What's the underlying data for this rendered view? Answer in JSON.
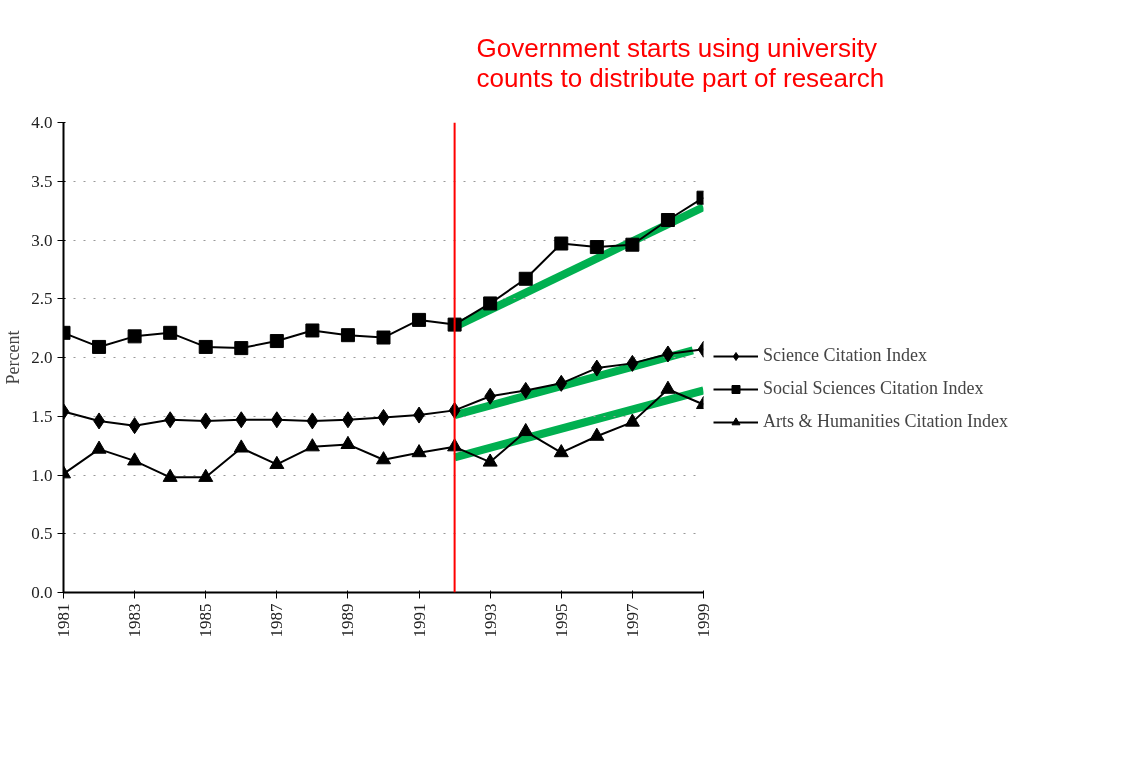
{
  "chart_data": {
    "type": "line",
    "ylabel": "Percent",
    "x": [
      1981,
      1982,
      1983,
      1984,
      1985,
      1986,
      1987,
      1988,
      1989,
      1990,
      1991,
      1992,
      1993,
      1994,
      1995,
      1996,
      1997,
      1998,
      1999
    ],
    "series": [
      {
        "name": "Science Citation Index",
        "color": "#000000",
        "marker": "diamond",
        "values": [
          1.54,
          1.46,
          1.42,
          1.47,
          1.46,
          1.47,
          1.47,
          1.46,
          1.47,
          1.49,
          1.51,
          1.55,
          1.67,
          1.72,
          1.78,
          1.91,
          1.95,
          2.03,
          2.07
        ]
      },
      {
        "name": "Social Sciences Citation Index",
        "color": "#000000",
        "marker": "square",
        "values": [
          2.21,
          2.09,
          2.18,
          2.21,
          2.09,
          2.08,
          2.14,
          2.23,
          2.19,
          2.17,
          2.32,
          2.28,
          2.46,
          2.67,
          2.97,
          2.94,
          2.96,
          3.17,
          3.36
        ]
      },
      {
        "name": "Arts & Humanities Citation Index",
        "color": "#000000",
        "marker": "triangle",
        "values": [
          1.01,
          1.22,
          1.12,
          0.98,
          0.98,
          1.23,
          1.09,
          1.24,
          1.26,
          1.13,
          1.19,
          1.24,
          1.11,
          1.37,
          1.19,
          1.33,
          1.45,
          1.73,
          1.6
        ]
      },
      {
        "type": "line",
        "color": "#00b050",
        "marker": "none",
        "x": [
          1992,
          1999
        ],
        "values": [
          2.26,
          3.28
        ]
      },
      {
        "type": "line",
        "color": "#00b050",
        "marker": "none",
        "x": [
          1992,
          1998.7
        ],
        "values": [
          1.51,
          2.06
        ]
      },
      {
        "type": "line",
        "color": "#00b050",
        "marker": "none",
        "x": [
          1992,
          1999
        ],
        "values": [
          1.15,
          1.72
        ]
      }
    ],
    "xlim": [
      1981,
      1999
    ],
    "xticks": [
      1981,
      1983,
      1985,
      1987,
      1989,
      1991,
      1993,
      1995,
      1997,
      1999
    ],
    "ylim": [
      0,
      4
    ],
    "yticks": [
      {
        "value": 0,
        "label": "0.0"
      },
      {
        "value": 0.5,
        "label": "0.5"
      },
      {
        "value": 1,
        "label": "1.0"
      },
      {
        "value": 1.5,
        "label": "1.5"
      },
      {
        "value": 2,
        "label": "2.0"
      },
      {
        "value": 2.5,
        "label": "2.5"
      },
      {
        "value": 3,
        "label": "3.0"
      },
      {
        "value": 3.5,
        "label": "3.5"
      },
      {
        "value": 4,
        "label": "4.0"
      }
    ],
    "grid": "y",
    "legend": "right",
    "line_style": "solid",
    "ref_lines": [
      {
        "axis": "x",
        "value": 1992,
        "label": "Government starts using university\ncounts to distribute part of research",
        "color": "#ff0000",
        "line_style": "solid"
      }
    ]
  }
}
